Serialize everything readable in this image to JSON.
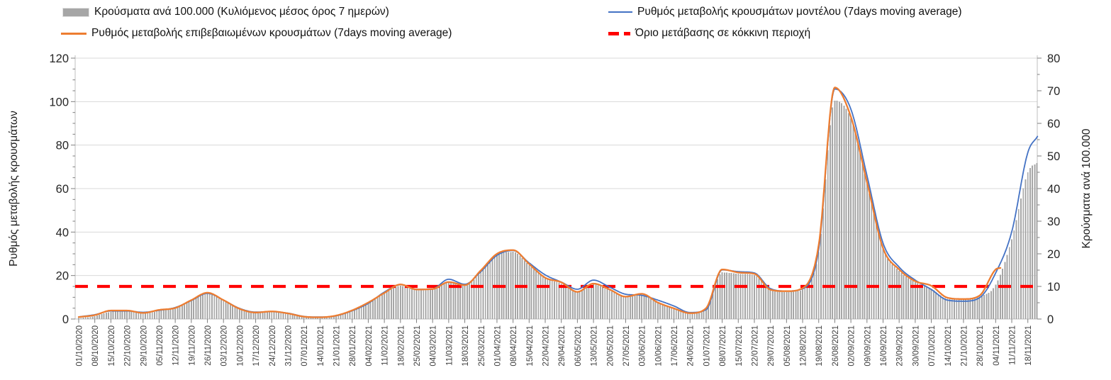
{
  "legend": {
    "items": [
      {
        "key": "bars",
        "label": "Κρούσματα ανά 100.000 (Κυλιόμενος μέσος όρος 7 ημερών)"
      },
      {
        "key": "model",
        "label": "Ρυθμός μεταβολής κρουσμάτων μοντέλου (7days moving average)"
      },
      {
        "key": "confirmed",
        "label": "Ρυθμός μεταβολής επιβεβαιωμένων κρουσμάτων (7days moving average)"
      },
      {
        "key": "threshold",
        "label": "Όριο μετάβασης σε κόκκινη περιοχή"
      }
    ]
  },
  "chart_data": {
    "type": "combo-bar-line",
    "title": "",
    "left_axis": {
      "title": "Ρυθμός μεταβολής κρουσμάτων",
      "min": 0,
      "max": 120,
      "major_ticks": [
        0,
        20,
        40,
        60,
        80,
        100,
        120
      ],
      "minor_step": 5,
      "grid": true
    },
    "right_axis": {
      "title": "Κρούσματα ανά 100.000",
      "min": 0,
      "max": 80,
      "major_ticks": [
        0,
        10,
        20,
        30,
        40,
        50,
        60,
        70,
        80
      ],
      "minor_step": 5
    },
    "x_tick_labels": [
      "01/10/2020",
      "08/10/2020",
      "15/10/2020",
      "22/10/2020",
      "29/10/2020",
      "05/11/2020",
      "12/11/2020",
      "19/11/2020",
      "26/11/2020",
      "03/12/2020",
      "10/12/2020",
      "17/12/2020",
      "24/12/2020",
      "31/12/2020",
      "07/01/2021",
      "14/01/2021",
      "21/01/2021",
      "28/01/2021",
      "04/02/2021",
      "11/02/2021",
      "18/02/2021",
      "25/02/2021",
      "04/03/2021",
      "11/03/2021",
      "18/03/2021",
      "25/03/2021",
      "01/04/2021",
      "08/04/2021",
      "15/04/2021",
      "22/04/2021",
      "29/04/2021",
      "06/05/2021",
      "13/05/2021",
      "20/05/2021",
      "27/05/2021",
      "03/06/2021",
      "10/06/2021",
      "17/06/2021",
      "24/06/2021",
      "01/07/2021",
      "08/07/2021",
      "15/07/2021",
      "22/07/2021",
      "29/07/2021",
      "05/08/2021",
      "12/08/2021",
      "19/08/2021",
      "26/08/2021",
      "02/09/2021",
      "09/09/2021",
      "16/09/2021",
      "23/09/2021",
      "30/09/2021",
      "07/10/2021",
      "14/10/2021",
      "21/10/2021",
      "28/10/2021",
      "04/11/2021",
      "11/11/2021",
      "18/11/2021"
    ],
    "threshold": {
      "name": "Όριο μετάβασης σε κόκκινη περιοχή",
      "axis": "right",
      "value": 10,
      "color": "#FF0000",
      "style": "dashed"
    },
    "series": {
      "bars": {
        "name": "Κρούσματα ανά 100.000 (Κυλιόμενος μέσος όρος 7 ημερών)",
        "axis": "right",
        "color": "#A6A6A6",
        "render": "daily-bars",
        "points": [
          [
            0,
            0.3
          ],
          [
            1,
            0.9
          ],
          [
            2,
            2.2
          ],
          [
            3,
            2.4
          ],
          [
            4,
            1.7
          ],
          [
            5,
            2.5
          ],
          [
            6,
            3.3
          ],
          [
            7,
            5.6
          ],
          [
            8,
            7.7
          ],
          [
            9,
            5.6
          ],
          [
            10,
            3.0
          ],
          [
            11,
            1.9
          ],
          [
            12,
            2.2
          ],
          [
            13,
            1.6
          ],
          [
            14,
            0.7
          ],
          [
            15,
            0.5
          ],
          [
            16,
            1.0
          ],
          [
            17,
            2.5
          ],
          [
            18,
            4.8
          ],
          [
            19,
            7.8
          ],
          [
            20,
            10.2
          ],
          [
            21,
            8.8
          ],
          [
            22,
            9.0
          ],
          [
            23,
            11.3
          ],
          [
            24,
            10.3
          ],
          [
            25,
            14.3
          ],
          [
            26,
            19.5
          ],
          [
            27,
            20.6
          ],
          [
            28,
            16.5
          ],
          [
            29,
            12.6
          ],
          [
            30,
            10.9
          ],
          [
            31,
            8.6
          ],
          [
            32,
            10.6
          ],
          [
            33,
            8.8
          ],
          [
            34,
            6.8
          ],
          [
            35,
            7.4
          ],
          [
            36,
            5.2
          ],
          [
            37,
            3.3
          ],
          [
            38,
            1.8
          ],
          [
            39,
            2.8
          ],
          [
            40,
            14.3
          ],
          [
            41,
            13.9
          ],
          [
            42,
            13.5
          ],
          [
            43,
            8.8
          ],
          [
            44,
            8.3
          ],
          [
            45,
            9.0
          ],
          [
            46,
            20.5
          ],
          [
            47,
            67.0
          ],
          [
            48,
            61.5
          ],
          [
            49,
            41.5
          ],
          [
            50,
            21.5
          ],
          [
            51,
            14.8
          ],
          [
            52,
            11.3
          ],
          [
            53,
            9.2
          ],
          [
            54,
            6.2
          ],
          [
            55,
            5.9
          ],
          [
            56,
            6.9
          ],
          [
            57,
            10.5
          ],
          [
            58,
            24.5
          ],
          [
            59,
            45.0
          ],
          [
            59.6,
            48.0
          ]
        ]
      },
      "model": {
        "name": "Ρυθμός μεταβολής κρουσμάτων μοντέλου (7days moving average)",
        "axis": "left",
        "color": "#4472C4",
        "render": "line",
        "points": [
          [
            0,
            1.0
          ],
          [
            1,
            2.0
          ],
          [
            2,
            3.7
          ],
          [
            3,
            3.7
          ],
          [
            4,
            3.1
          ],
          [
            5,
            4.0
          ],
          [
            6,
            5.3
          ],
          [
            7,
            8.5
          ],
          [
            8,
            11.8
          ],
          [
            9,
            8.7
          ],
          [
            10,
            4.9
          ],
          [
            11,
            3.2
          ],
          [
            12,
            3.4
          ],
          [
            13,
            2.7
          ],
          [
            14,
            1.2
          ],
          [
            15,
            0.9
          ],
          [
            16,
            1.5
          ],
          [
            17,
            3.8
          ],
          [
            18,
            7.2
          ],
          [
            19,
            12.4
          ],
          [
            20,
            15.8
          ],
          [
            21,
            13.7
          ],
          [
            22,
            13.9
          ],
          [
            23,
            18.3
          ],
          [
            24,
            16.0
          ],
          [
            25,
            21.8
          ],
          [
            26,
            29.3
          ],
          [
            27,
            31.5
          ],
          [
            28,
            25.8
          ],
          [
            29,
            20.3
          ],
          [
            30,
            17.0
          ],
          [
            31,
            13.7
          ],
          [
            32,
            17.9
          ],
          [
            33,
            14.7
          ],
          [
            34,
            11.4
          ],
          [
            35,
            10.9
          ],
          [
            36,
            8.7
          ],
          [
            37,
            6.0
          ],
          [
            38,
            3.0
          ],
          [
            39,
            4.3
          ],
          [
            40,
            22.6
          ],
          [
            41,
            21.8
          ],
          [
            42,
            21.2
          ],
          [
            43,
            14.0
          ],
          [
            44,
            12.9
          ],
          [
            45,
            13.9
          ],
          [
            46,
            32.0
          ],
          [
            47,
            105.8
          ],
          [
            48,
            96.5
          ],
          [
            49,
            66.0
          ],
          [
            50,
            34.9
          ],
          [
            51,
            23.9
          ],
          [
            52,
            17.9
          ],
          [
            53,
            13.6
          ],
          [
            54,
            8.7
          ],
          [
            55,
            8.2
          ],
          [
            56,
            9.8
          ],
          [
            57,
            21.2
          ],
          [
            58,
            40.2
          ],
          [
            59,
            76.6
          ],
          [
            59.6,
            84.0
          ]
        ]
      },
      "confirmed": {
        "name": "Ρυθμός μεταβολής επιβεβαιωμένων κρουσμάτων (7days moving average)",
        "axis": "left",
        "color": "#ED7D31",
        "render": "line",
        "points": [
          [
            0,
            0.9
          ],
          [
            1,
            1.8
          ],
          [
            2,
            3.9
          ],
          [
            3,
            3.9
          ],
          [
            4,
            2.8
          ],
          [
            5,
            4.2
          ],
          [
            6,
            5.1
          ],
          [
            7,
            8.7
          ],
          [
            8,
            12.1
          ],
          [
            9,
            8.7
          ],
          [
            10,
            4.7
          ],
          [
            11,
            3.0
          ],
          [
            12,
            3.5
          ],
          [
            13,
            2.6
          ],
          [
            14,
            1.1
          ],
          [
            15,
            0.8
          ],
          [
            16,
            1.6
          ],
          [
            17,
            4.0
          ],
          [
            18,
            7.6
          ],
          [
            19,
            12.0
          ],
          [
            20,
            15.9
          ],
          [
            21,
            13.6
          ],
          [
            22,
            13.8
          ],
          [
            23,
            17.0
          ],
          [
            24,
            15.6
          ],
          [
            25,
            22.4
          ],
          [
            26,
            30.0
          ],
          [
            27,
            31.7
          ],
          [
            28,
            25.3
          ],
          [
            29,
            19.0
          ],
          [
            30,
            16.9
          ],
          [
            31,
            12.5
          ],
          [
            32,
            16.3
          ],
          [
            33,
            13.6
          ],
          [
            34,
            10.3
          ],
          [
            35,
            11.6
          ],
          [
            36,
            7.6
          ],
          [
            37,
            4.9
          ],
          [
            38,
            2.7
          ],
          [
            39,
            5.0
          ],
          [
            40,
            22.8
          ],
          [
            41,
            21.4
          ],
          [
            42,
            20.8
          ],
          [
            43,
            13.5
          ],
          [
            44,
            12.8
          ],
          [
            45,
            14.2
          ],
          [
            46,
            34.0
          ],
          [
            47,
            106.5
          ],
          [
            48,
            93.0
          ],
          [
            49,
            63.0
          ],
          [
            50,
            32.6
          ],
          [
            51,
            22.8
          ],
          [
            52,
            17.4
          ],
          [
            53,
            15.3
          ],
          [
            54,
            9.8
          ],
          [
            55,
            9.2
          ],
          [
            56,
            10.8
          ],
          [
            57,
            22.8
          ],
          [
            57.3,
            23.5
          ]
        ]
      }
    },
    "colors": {
      "grid": "#D9D9D9",
      "axis_line": "#BFBFBF",
      "tick": "#7F7F7F",
      "y_label_text": "#262626",
      "x_label_text": "#404040",
      "axis_title_text": "#1a1a1a"
    }
  }
}
